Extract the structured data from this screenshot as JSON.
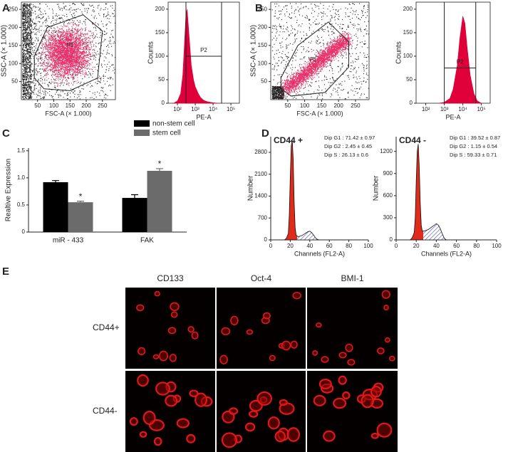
{
  "panel_labels": [
    "A",
    "B",
    "C",
    "D",
    "E"
  ],
  "chart_data": [
    {
      "type": "scatter",
      "x_label": "FSC-A (× 1.000)",
      "y_label": "SSC-A (× 1.000)",
      "xlim": [
        0,
        290
      ],
      "ylim": [
        0,
        270
      ],
      "xticks": [
        50,
        100,
        150,
        200,
        250
      ],
      "yticks": [
        50,
        100,
        150,
        200,
        250
      ],
      "gate_label": "P1"
    },
    {
      "type": "area",
      "log_x": true,
      "x_label": "PE-A",
      "y_label": "Counts",
      "color": "#e0003a",
      "xlim": [
        30,
        300000
      ],
      "ylim": [
        0,
        215
      ],
      "xticks": [
        {
          "value": 100,
          "label": "10²"
        },
        {
          "value": 1000,
          "label": "10³"
        },
        {
          "value": 10000,
          "label": "10⁴"
        },
        {
          "value": 100000,
          "label": "10⁵"
        }
      ],
      "yticks": [
        0,
        50,
        100,
        150,
        200
      ],
      "gate_label": "P2",
      "x": [
        60,
        100,
        150,
        200,
        250,
        300,
        350,
        400,
        500,
        600,
        800,
        1000,
        1500,
        2000,
        3000,
        5000,
        10000,
        20000
      ],
      "values": [
        0,
        5,
        20,
        60,
        130,
        190,
        200,
        170,
        120,
        80,
        50,
        35,
        20,
        12,
        6,
        3,
        1,
        0
      ]
    },
    {
      "type": "scatter",
      "x_label": "FSC-A (× 1.000)",
      "y_label": "SSC-A (× 1.000)",
      "xlim": [
        0,
        290
      ],
      "ylim": [
        0,
        270
      ],
      "xticks": [
        50,
        100,
        150,
        200,
        250
      ],
      "yticks": [
        50,
        100,
        150,
        200,
        250
      ],
      "gate_label": "P1"
    },
    {
      "type": "area",
      "log_x": true,
      "x_label": "PE-A",
      "y_label": "Counts",
      "color": "#e0003a",
      "xlim": [
        30,
        300000
      ],
      "ylim": [
        0,
        215
      ],
      "xticks": [
        {
          "value": 100,
          "label": "10²"
        },
        {
          "value": 1000,
          "label": "10³"
        },
        {
          "value": 10000,
          "label": "10⁴"
        },
        {
          "value": 100000,
          "label": "10⁵"
        }
      ],
      "yticks": [
        0,
        50,
        100,
        150,
        200
      ],
      "gate_label": "P2",
      "x": [
        500,
        1000,
        2000,
        3000,
        5000,
        7000,
        10000,
        13000,
        17000,
        25000,
        40000,
        60000,
        100000
      ],
      "values": [
        0,
        2,
        10,
        30,
        80,
        140,
        185,
        170,
        120,
        60,
        20,
        5,
        0
      ]
    },
    {
      "type": "bar",
      "y_label": "Realtive Expression",
      "categories": [
        "miR - 433",
        "FAK"
      ],
      "series": [
        {
          "name": "non-stem cell",
          "color": "#000000",
          "values": [
            0.92,
            0.63
          ],
          "errors": [
            0.03,
            0.06
          ]
        },
        {
          "name": "stem cell",
          "color": "#6b6b6b",
          "values": [
            0.55,
            1.13
          ],
          "errors": [
            0.02,
            0.04
          ]
        }
      ],
      "ylim": [
        0,
        1.55
      ],
      "yticks": [
        0,
        0.5,
        {
          "value": 1,
          "label": "1.0"
        },
        1.5
      ],
      "annotations": [
        "*",
        "*"
      ]
    },
    {
      "type": "cell_cycle",
      "title": "CD44 +",
      "annotations": [
        "Dip G1 : 71.42 ± 0.97",
        "Dip G2 : 2.45 ± 0.45",
        "Dip S : 26.13 ± 0.6"
      ],
      "x_label": "Channels (FL2-A)",
      "y_label": "Number",
      "xlim": [
        0,
        100
      ],
      "xticks": [
        0,
        20,
        40,
        60,
        80,
        100
      ],
      "ylim": [
        0,
        3300
      ],
      "yticks": [
        0,
        700,
        1400,
        2100,
        2800
      ],
      "x": [
        14,
        16,
        18,
        19,
        20,
        21,
        22,
        23,
        24,
        25,
        26,
        28,
        30,
        32,
        34,
        36,
        38,
        40,
        42,
        44,
        46,
        48,
        50
      ],
      "values": [
        0,
        50,
        200,
        800,
        2000,
        3000,
        3200,
        2600,
        1200,
        400,
        150,
        100,
        120,
        140,
        180,
        220,
        260,
        280,
        230,
        150,
        60,
        10,
        0
      ]
    },
    {
      "type": "cell_cycle",
      "title": "CD44 -",
      "annotations": [
        "Dip G1 : 39.52 ± 0.87",
        "Dip G2 : 1.15 ± 0.54",
        "Dip S : 59.33 ± 0.71"
      ],
      "x_label": "Channels (FL2-A)",
      "y_label": "Number",
      "xlim": [
        0,
        100
      ],
      "xticks": [
        0,
        20,
        40,
        60,
        80,
        100
      ],
      "ylim": [
        0,
        1400
      ],
      "yticks": [
        0,
        300,
        600,
        900,
        1200
      ],
      "x": [
        14,
        16,
        18,
        19,
        20,
        21,
        22,
        23,
        24,
        25,
        26,
        28,
        30,
        32,
        34,
        36,
        38,
        40,
        42,
        44,
        46,
        48,
        50
      ],
      "values": [
        0,
        30,
        100,
        300,
        800,
        1200,
        1300,
        1000,
        500,
        200,
        120,
        120,
        130,
        140,
        160,
        180,
        200,
        220,
        200,
        150,
        80,
        20,
        0
      ]
    }
  ],
  "image_grid": {
    "columns": [
      "CD133",
      "Oct-4",
      "BMI-1"
    ],
    "rows": [
      "CD44+",
      "CD44-"
    ]
  }
}
